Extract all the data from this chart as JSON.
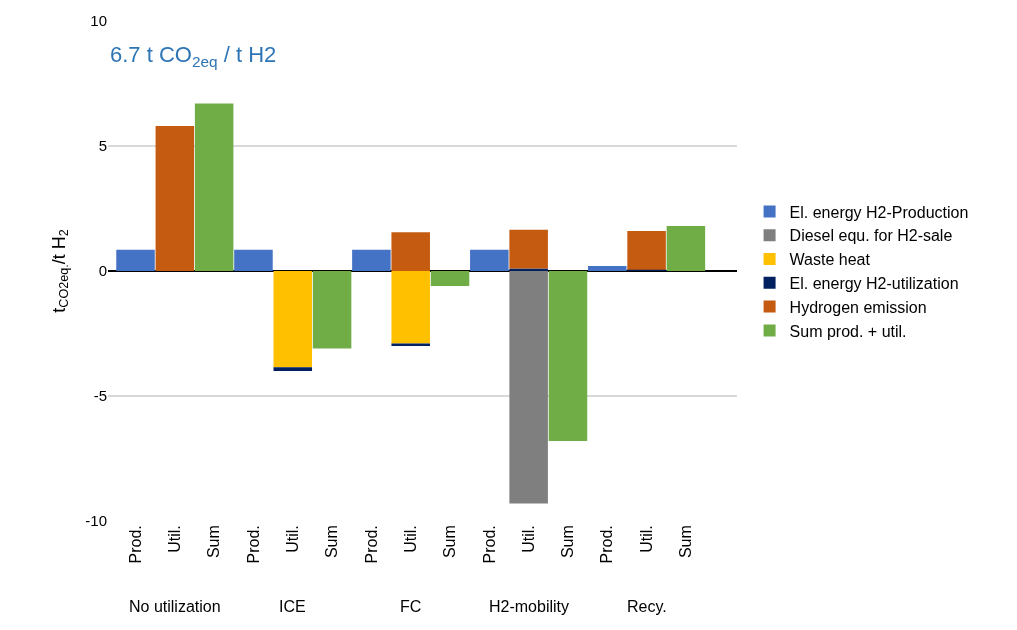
{
  "chart_data": {
    "type": "bar",
    "stacked": true,
    "title": "6.7 t CO$_{2eq}$ / t H2",
    "ylabel": "t$_{CO2eq.}$/t H$_{2}$",
    "categories": [
      "Prod.",
      "Util.",
      "Sum",
      "Prod.",
      "Util.",
      "Sum",
      "Prod.",
      "Util.",
      "Sum",
      "Prod.",
      "Util.",
      "Sum",
      "Prod.",
      "Util.",
      "Sum"
    ],
    "annotations": [
      "No utilization",
      "ICE",
      "FC",
      "H2-mobility",
      "Recy."
    ],
    "series": [
      {
        "name": "El. energy H2-Production",
        "color": "#4472c4",
        "values": [
          0.85,
          null,
          null,
          0.85,
          null,
          null,
          0.85,
          null,
          null,
          0.85,
          null,
          null,
          0.2,
          null,
          null
        ]
      },
      {
        "name": "Diesel equ. for H2-sale",
        "color": "#7f7f7f",
        "values": [
          null,
          null,
          null,
          null,
          null,
          null,
          null,
          null,
          null,
          null,
          -9.3,
          null,
          null,
          null,
          null
        ]
      },
      {
        "name": "Waste heat",
        "color": "#ffc000",
        "values": [
          null,
          null,
          null,
          null,
          -3.85,
          null,
          null,
          -2.9,
          null,
          null,
          null,
          null,
          null,
          null,
          null
        ]
      },
      {
        "name": "El. energy H2-utilization",
        "color": "#002060",
        "values": [
          null,
          null,
          null,
          null,
          -0.15,
          null,
          null,
          -0.1,
          null,
          null,
          0.1,
          null,
          null,
          0.05,
          null
        ]
      },
      {
        "name": "Hydrogen emission",
        "color": "#c55a11",
        "values": [
          null,
          5.8,
          null,
          null,
          null,
          null,
          null,
          1.55,
          null,
          null,
          1.55,
          null,
          null,
          1.55,
          null
        ]
      },
      {
        "name": "Sum prod. + util.",
        "color": "#70ad47",
        "values": [
          null,
          null,
          6.7,
          null,
          null,
          -3.1,
          null,
          null,
          -0.6,
          null,
          null,
          -6.8,
          null,
          null,
          1.8
        ]
      }
    ],
    "ylim": [
      -10,
      10
    ],
    "yticks": [
      -10,
      -5,
      0,
      5,
      10
    ],
    "grid": "y",
    "legend": "right"
  }
}
